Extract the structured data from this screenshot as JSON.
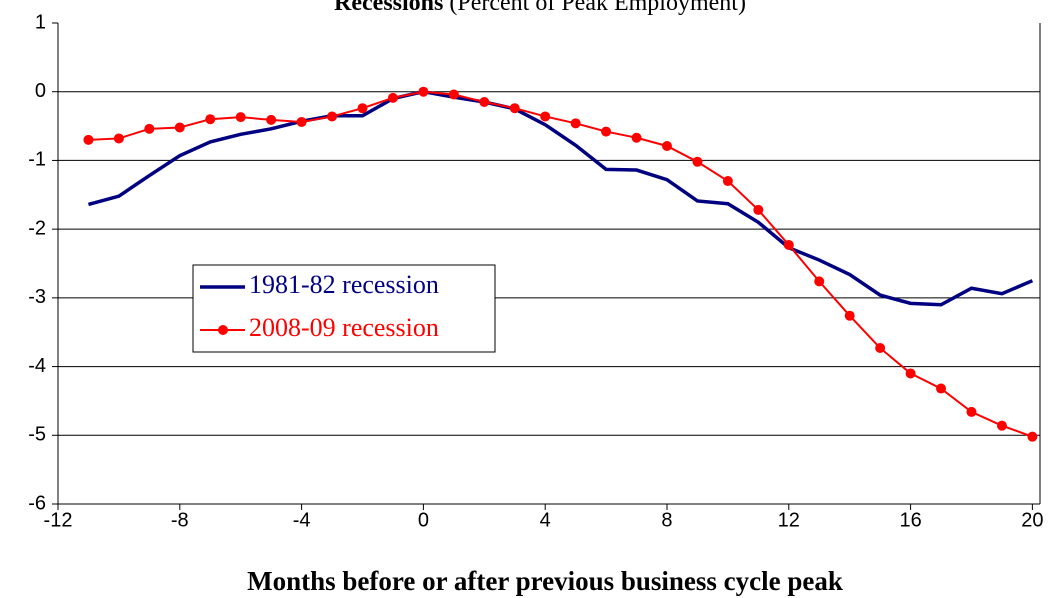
{
  "chart_data": {
    "type": "line",
    "title": "Recessions",
    "subtitle": "(Percent of Peak Employment)",
    "x_label": "Months before or after previous business cycle peak",
    "x": [
      -11,
      -10,
      -9,
      -8,
      -7,
      -6,
      -5,
      -4,
      -3,
      -2,
      -1,
      0,
      1,
      2,
      3,
      4,
      5,
      6,
      7,
      8,
      9,
      10,
      11,
      12,
      13,
      14,
      15,
      16,
      17,
      18,
      19,
      20
    ],
    "series": [
      {
        "name": "1981-82 recession",
        "color": "#000080",
        "marker": false,
        "values": [
          -1.64,
          -1.52,
          -1.22,
          -0.93,
          -0.73,
          -0.62,
          -0.54,
          -0.43,
          -0.35,
          -0.35,
          -0.1,
          0,
          -0.08,
          -0.15,
          -0.25,
          -0.48,
          -0.78,
          -1.13,
          -1.14,
          -1.28,
          -1.59,
          -1.63,
          -1.9,
          -2.27,
          -2.45,
          -2.66,
          -2.96,
          -3.08,
          -3.1,
          -2.86,
          -2.94,
          -2.75
        ]
      },
      {
        "name": "2008-09 recession",
        "color": "#ff0000",
        "marker": true,
        "values": [
          -0.7,
          -0.68,
          -0.54,
          -0.52,
          -0.4,
          -0.37,
          -0.41,
          -0.44,
          -0.36,
          -0.24,
          -0.09,
          0,
          -0.04,
          -0.15,
          -0.24,
          -0.36,
          -0.46,
          -0.58,
          -0.67,
          -0.79,
          -1.02,
          -1.3,
          -1.72,
          -2.23,
          -2.76,
          -3.26,
          -3.73,
          -4.1,
          -4.32,
          -4.66,
          -4.86,
          -5.02
        ]
      }
    ],
    "xlim": [
      -12,
      20.25
    ],
    "xticks": [
      -12,
      -8,
      -4,
      0,
      4,
      8,
      12,
      16,
      20
    ],
    "ylim": [
      -6,
      1
    ],
    "yticks": [
      -6,
      -5,
      -4,
      -3,
      -2,
      -1,
      0,
      1
    ],
    "grid": true,
    "legend": "center-left"
  }
}
